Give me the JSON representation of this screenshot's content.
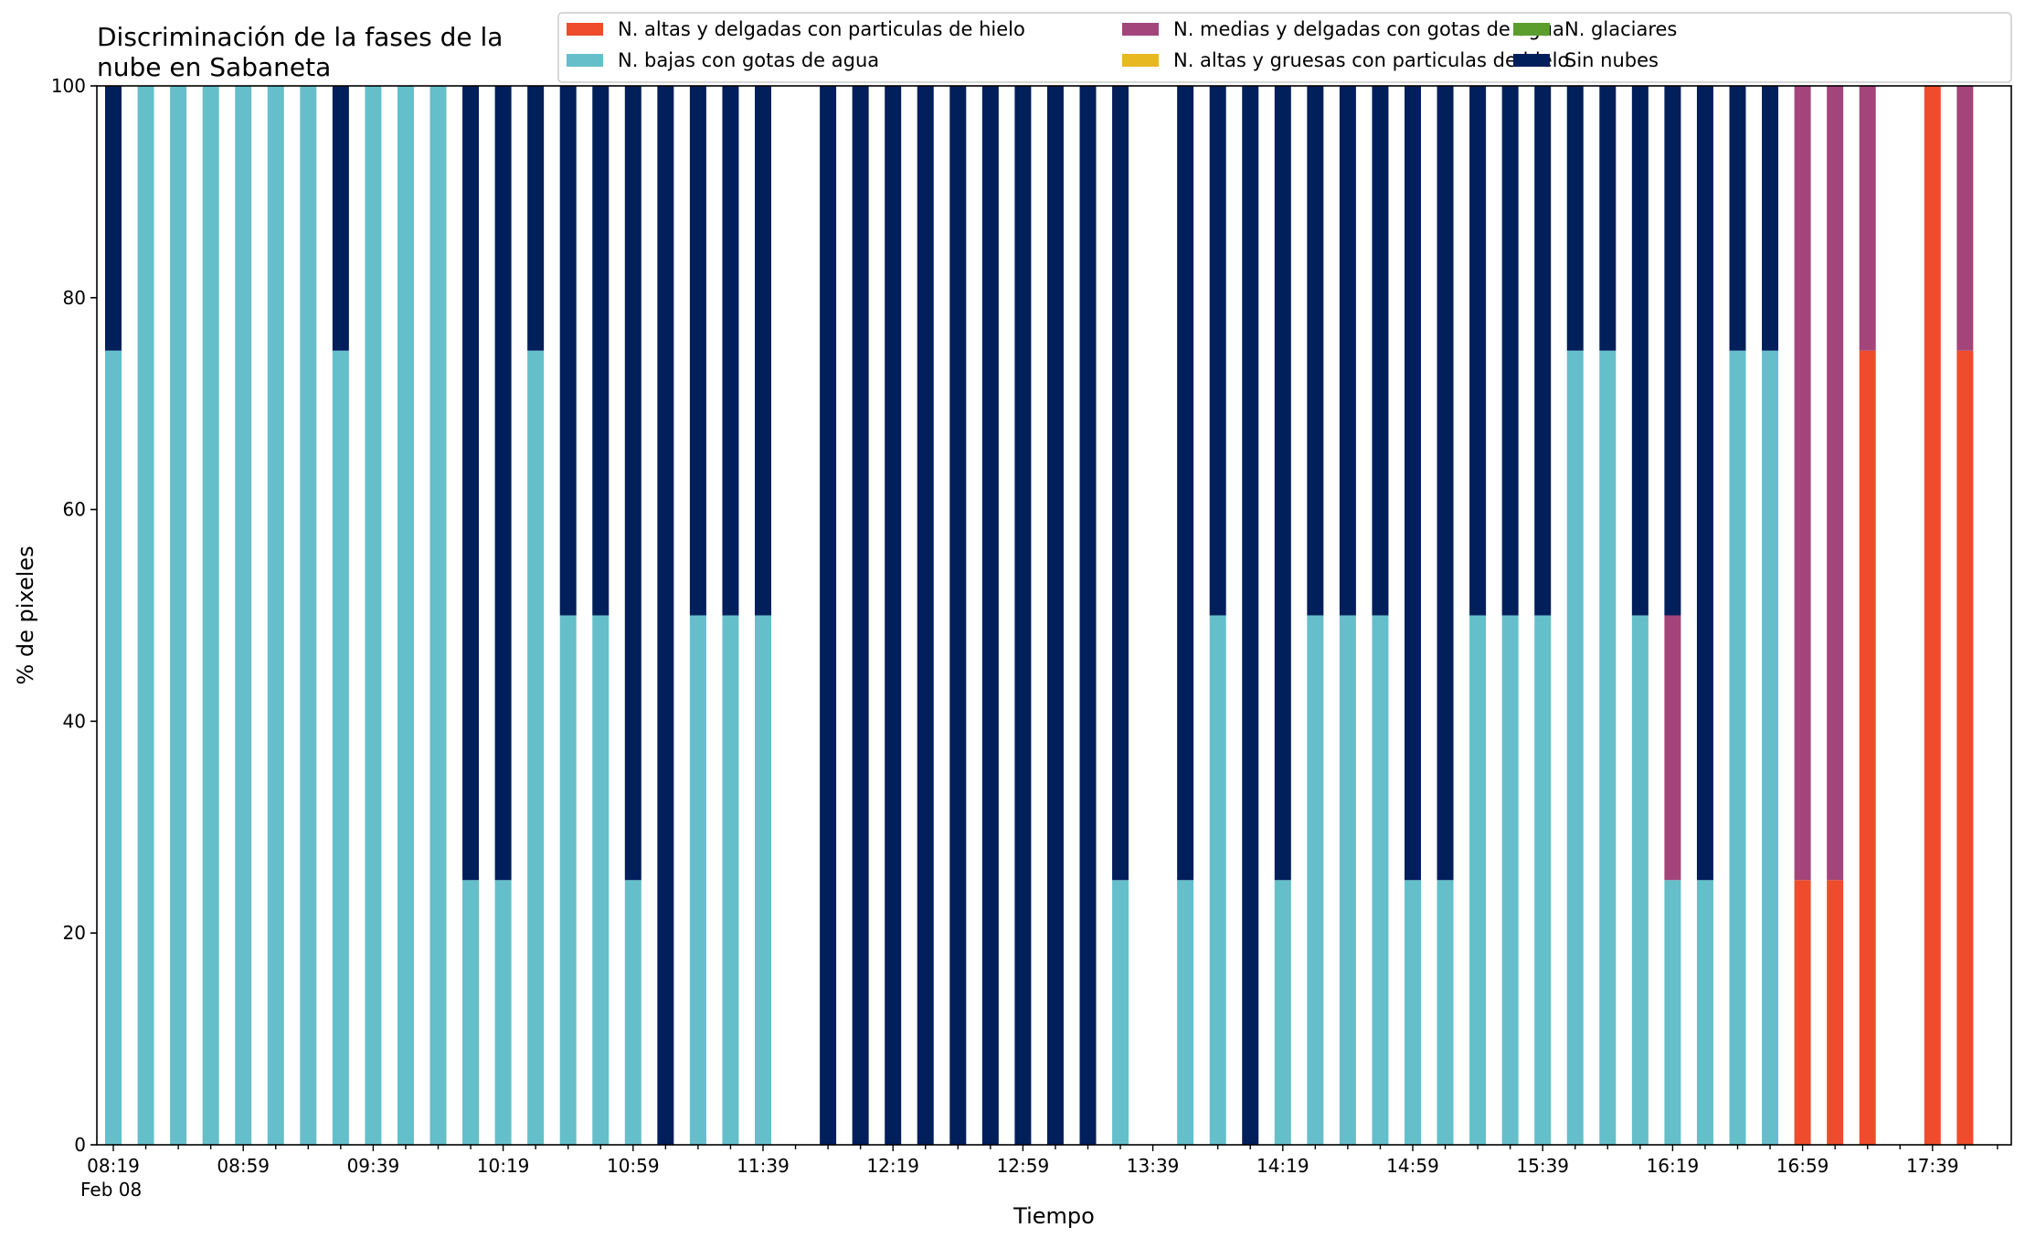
{
  "chart_data": {
    "type": "bar",
    "stacked": true,
    "title": "Discriminación de la fases de la nube en Sabaneta",
    "title_lines": [
      "Discriminación de la fases de la",
      "nube en Sabaneta"
    ],
    "xlabel": "Tiempo",
    "ylabel": "% de pixeles",
    "ylim": [
      0,
      100
    ],
    "yticks": [
      0,
      20,
      40,
      60,
      80,
      100
    ],
    "grid": false,
    "legend_position": "top-right",
    "date_label": "Feb 08",
    "tick_every_minutes": 10,
    "x_start": "08:19",
    "x_end": "18:09",
    "x_labels": [
      "08:19",
      "08:59",
      "09:39",
      "10:19",
      "10:59",
      "11:39",
      "12:19",
      "12:59",
      "13:39",
      "14:19",
      "14:59",
      "15:39",
      "16:19",
      "16:59",
      "17:39"
    ],
    "x": [
      "08:19",
      "08:29",
      "08:39",
      "08:49",
      "08:59",
      "09:09",
      "09:19",
      "09:29",
      "09:39",
      "09:49",
      "09:59",
      "10:09",
      "10:19",
      "10:29",
      "10:39",
      "10:49",
      "10:59",
      "11:09",
      "11:19",
      "11:29",
      "11:39",
      "11:49",
      "11:59",
      "12:09",
      "12:19",
      "12:29",
      "12:39",
      "12:49",
      "12:59",
      "13:09",
      "13:19",
      "13:29",
      "13:39",
      "13:49",
      "13:59",
      "14:09",
      "14:19",
      "14:29",
      "14:39",
      "14:49",
      "14:59",
      "15:09",
      "15:19",
      "15:29",
      "15:39",
      "15:49",
      "15:59",
      "16:09",
      "16:19",
      "16:29",
      "16:39",
      "16:49",
      "16:59",
      "17:09",
      "17:19",
      "17:29",
      "17:39",
      "17:49",
      "17:59",
      "18:09"
    ],
    "series": [
      {
        "name": "N. altas y delgadas con particulas de hielo",
        "color": "#ee4c2c",
        "values": [
          0,
          0,
          0,
          0,
          0,
          0,
          0,
          0,
          0,
          0,
          0,
          0,
          0,
          0,
          0,
          0,
          0,
          0,
          0,
          0,
          0,
          0,
          0,
          0,
          0,
          0,
          0,
          0,
          0,
          0,
          0,
          0,
          0,
          0,
          0,
          0,
          0,
          0,
          0,
          0,
          0,
          0,
          0,
          0,
          0,
          0,
          0,
          0,
          0,
          0,
          0,
          0,
          25,
          25,
          75,
          0,
          100,
          75,
          0,
          0
        ]
      },
      {
        "name": "N. altas y gruesas con particulas de hielo",
        "color": "#e8b820",
        "values": [
          0,
          0,
          0,
          0,
          0,
          0,
          0,
          0,
          0,
          0,
          0,
          0,
          0,
          0,
          0,
          0,
          0,
          0,
          0,
          0,
          0,
          0,
          0,
          0,
          0,
          0,
          0,
          0,
          0,
          0,
          0,
          0,
          0,
          0,
          0,
          0,
          0,
          0,
          0,
          0,
          0,
          0,
          0,
          0,
          0,
          0,
          0,
          0,
          0,
          0,
          0,
          0,
          0,
          0,
          0,
          0,
          0,
          0,
          0,
          0
        ]
      },
      {
        "name": "N. bajas con gotas de agua",
        "color": "#64bfcb",
        "values": [
          75,
          100,
          100,
          100,
          100,
          100,
          100,
          75,
          100,
          100,
          100,
          25,
          25,
          75,
          50,
          50,
          25,
          0,
          50,
          50,
          50,
          0,
          0,
          0,
          0,
          0,
          0,
          0,
          0,
          0,
          0,
          25,
          0,
          25,
          50,
          0,
          25,
          50,
          50,
          50,
          25,
          25,
          50,
          50,
          50,
          75,
          75,
          50,
          25,
          25,
          75,
          75,
          0,
          0,
          0,
          0,
          0,
          0,
          0,
          0
        ]
      },
      {
        "name": "N. glaciares",
        "color": "#5b9e2e",
        "values": [
          0,
          0,
          0,
          0,
          0,
          0,
          0,
          0,
          0,
          0,
          0,
          0,
          0,
          0,
          0,
          0,
          0,
          0,
          0,
          0,
          0,
          0,
          0,
          0,
          0,
          0,
          0,
          0,
          0,
          0,
          0,
          0,
          0,
          0,
          0,
          0,
          0,
          0,
          0,
          0,
          0,
          0,
          0,
          0,
          0,
          0,
          0,
          0,
          0,
          0,
          0,
          0,
          0,
          0,
          0,
          0,
          0,
          0,
          0,
          0
        ]
      },
      {
        "name": "N. medias y delgadas con gotas de agua",
        "color": "#a3457a",
        "values": [
          0,
          0,
          0,
          0,
          0,
          0,
          0,
          0,
          0,
          0,
          0,
          0,
          0,
          0,
          0,
          0,
          0,
          0,
          0,
          0,
          0,
          0,
          0,
          0,
          0,
          0,
          0,
          0,
          0,
          0,
          0,
          0,
          0,
          0,
          0,
          0,
          0,
          0,
          0,
          0,
          0,
          0,
          0,
          0,
          0,
          0,
          0,
          0,
          25,
          0,
          0,
          0,
          75,
          75,
          25,
          0,
          0,
          25,
          0,
          0
        ]
      },
      {
        "name": "Sin nubes",
        "color": "#011f5b",
        "values": [
          25,
          0,
          0,
          0,
          0,
          0,
          0,
          25,
          0,
          0,
          0,
          75,
          75,
          25,
          50,
          50,
          75,
          100,
          50,
          50,
          50,
          0,
          100,
          100,
          100,
          100,
          100,
          100,
          100,
          100,
          100,
          75,
          0,
          75,
          50,
          100,
          75,
          50,
          50,
          50,
          75,
          75,
          50,
          50,
          50,
          25,
          25,
          50,
          50,
          75,
          25,
          25,
          0,
          0,
          0,
          0,
          0,
          0,
          0,
          0
        ]
      }
    ],
    "legend_order": [
      0,
      2,
      4,
      1,
      3,
      5
    ]
  }
}
